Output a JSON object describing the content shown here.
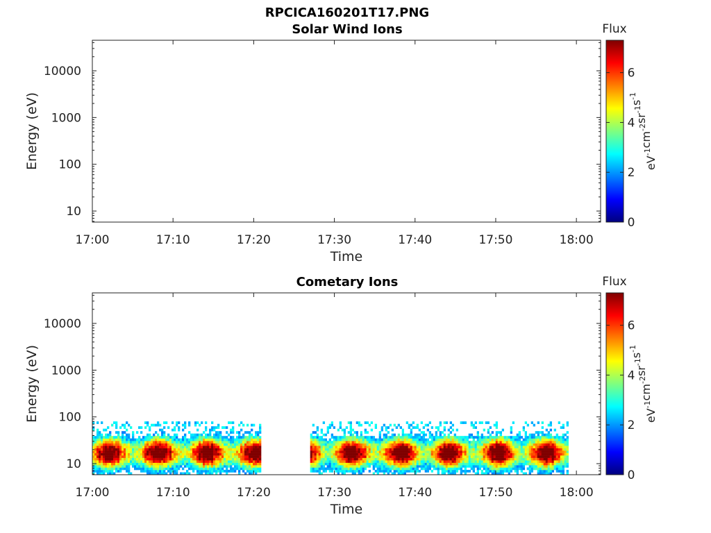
{
  "figure": {
    "title": "RPCICA160201T17.PNG"
  },
  "chart_data": [
    {
      "type": "heatmap",
      "title": "Solar Wind Ions",
      "xlabel": "Time",
      "ylabel": "Energy (eV)",
      "y_scale": "log",
      "ylim": [
        5.8,
        45000
      ],
      "x_ticks": [
        "17:00",
        "17:10",
        "17:20",
        "17:30",
        "17:40",
        "17:50",
        "18:00"
      ],
      "xlim_minutes_after_17": [
        0,
        63
      ],
      "y_ticks": [
        {
          "value": 10,
          "label": "10"
        },
        {
          "value": 100,
          "label": "100"
        },
        {
          "value": 1000,
          "label": "1000"
        },
        {
          "value": 10000,
          "label": "10000"
        }
      ],
      "colorbar": {
        "label": "Flux",
        "units_base": [
          "eV",
          "cm",
          "sr",
          "s"
        ],
        "units_exp": [
          "-1",
          "-2",
          "-1",
          "-1"
        ],
        "range": [
          0,
          7.3
        ],
        "ticks": [
          0,
          2,
          4,
          6
        ],
        "colormap": [
          "#00007f",
          "#0000ff",
          "#007fff",
          "#00ffff",
          "#7fff7f",
          "#ffff00",
          "#ff7f00",
          "#ff0000",
          "#7f0000"
        ]
      },
      "data_segments": []
    },
    {
      "type": "heatmap",
      "title": "Cometary Ions",
      "xlabel": "Time",
      "ylabel": "Energy (eV)",
      "y_scale": "log",
      "ylim": [
        5.8,
        45000
      ],
      "x_ticks": [
        "17:00",
        "17:10",
        "17:20",
        "17:30",
        "17:40",
        "17:50",
        "18:00"
      ],
      "xlim_minutes_after_17": [
        0,
        63
      ],
      "y_ticks": [
        {
          "value": 10,
          "label": "10"
        },
        {
          "value": 100,
          "label": "100"
        },
        {
          "value": 1000,
          "label": "1000"
        },
        {
          "value": 10000,
          "label": "10000"
        }
      ],
      "colorbar": {
        "label": "Flux",
        "units_base": [
          "eV",
          "cm",
          "sr",
          "s"
        ],
        "units_exp": [
          "-1",
          "-2",
          "-1",
          "-1"
        ],
        "range": [
          0,
          7.3
        ],
        "ticks": [
          0,
          2,
          4,
          6
        ],
        "colormap": [
          "#00007f",
          "#0000ff",
          "#007fff",
          "#00ffff",
          "#7fff7f",
          "#ffff00",
          "#ff7f00",
          "#ff0000",
          "#7f0000"
        ]
      },
      "data_segments": [
        {
          "start_minutes": 0,
          "end_minutes": 20.7,
          "energy_range_eV": [
            5.8,
            80
          ],
          "peak_energy_eV": 17,
          "peak_flux": 7
        },
        {
          "start_minutes": 27,
          "end_minutes": 59,
          "energy_range_eV": [
            5.8,
            80
          ],
          "peak_energy_eV": 17,
          "peak_flux": 7
        }
      ]
    }
  ]
}
